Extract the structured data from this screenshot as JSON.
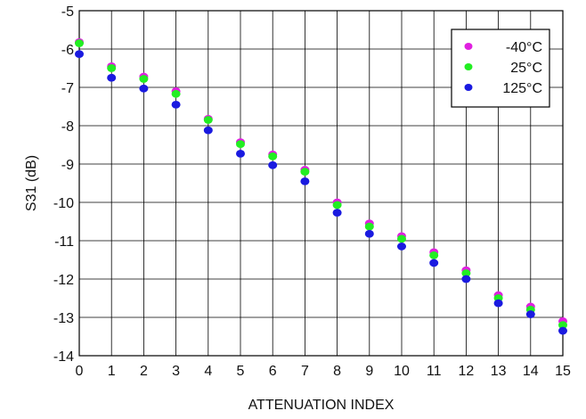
{
  "chart_data": {
    "type": "scatter",
    "title": "",
    "xlabel": "ATTENUATION INDEX",
    "ylabel": "S31 (dB)",
    "xlim": [
      0,
      15
    ],
    "ylim": [
      -14,
      -5
    ],
    "xticks": [
      "0",
      "1",
      "2",
      "3",
      "4",
      "5",
      "6",
      "7",
      "8",
      "9",
      "10",
      "11",
      "12",
      "13",
      "14",
      "15"
    ],
    "yticks": [
      "-5",
      "-6",
      "-7",
      "-8",
      "-9",
      "-10",
      "-11",
      "-12",
      "-13",
      "-14"
    ],
    "grid": true,
    "legend_position": "top-right",
    "x": [
      0,
      1,
      2,
      3,
      4,
      5,
      6,
      7,
      8,
      9,
      10,
      11,
      12,
      13,
      14,
      15
    ],
    "series": [
      {
        "name": "-40°C",
        "color": "#e020e0",
        "values": [
          -5.82,
          -6.45,
          -6.72,
          -7.1,
          -7.82,
          -8.43,
          -8.75,
          -9.15,
          -10.0,
          -10.55,
          -10.88,
          -11.3,
          -11.77,
          -12.42,
          -12.72,
          -13.1
        ]
      },
      {
        "name": "25°C",
        "color": "#22ee22",
        "values": [
          -5.85,
          -6.5,
          -6.78,
          -7.17,
          -7.85,
          -8.48,
          -8.8,
          -9.2,
          -10.07,
          -10.63,
          -10.95,
          -11.38,
          -11.85,
          -12.5,
          -12.8,
          -13.2
        ]
      },
      {
        "name": "125°C",
        "color": "#1a1ae0",
        "values": [
          -6.13,
          -6.75,
          -7.03,
          -7.45,
          -8.12,
          -8.73,
          -9.03,
          -9.45,
          -10.27,
          -10.82,
          -11.15,
          -11.58,
          -12.0,
          -12.63,
          -12.92,
          -13.35
        ]
      }
    ]
  }
}
